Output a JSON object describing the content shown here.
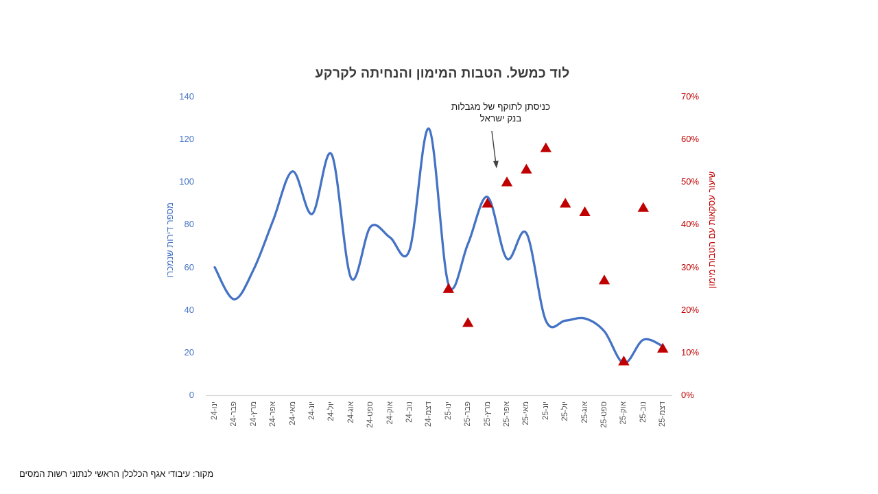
{
  "chart_data": {
    "type": "combo: smoothed line (left axis) + triangle scatter markers (right axis)",
    "title": "לוד כמשל. הטבות המימון והנחיתה לקרקע",
    "source": "מקור: עיבודי אגף הכלכלן הראשי לנתוני רשות המסים",
    "annotation": {
      "line1": "כניסתן לתוקף של מגבלות",
      "line2": "בנק ישראל",
      "points_to_category": "אפר-25"
    },
    "categories": [
      "ינו-24",
      "פבר-24",
      "מרץ-24",
      "אפר-24",
      "מאי-24",
      "יונ-24",
      "יול-24",
      "אוג-24",
      "ספט-24",
      "אוק-24",
      "נוב-24",
      "דצמ-24",
      "ינו-25",
      "פבר-25",
      "מרץ-25",
      "אפר-25",
      "מאי-25",
      "יונ-25",
      "יול-25",
      "אוג-25",
      "ספט-25",
      "אוק-25",
      "נוב-25",
      "דצמ-25"
    ],
    "series": [
      {
        "name": "מספר דירות שנמכרו",
        "type": "line",
        "axis": "left",
        "color": "#4472c4",
        "values": [
          60,
          45,
          59,
          82,
          105,
          85,
          113,
          55,
          79,
          74,
          68,
          125,
          52,
          71,
          93,
          64,
          76,
          35,
          35,
          36,
          30,
          15,
          26,
          23
        ]
      },
      {
        "name": "שיעור עסקאות עם הטבות מימון",
        "type": "scatter",
        "marker": "triangle",
        "axis": "right",
        "color": "#c00000",
        "values_percent": [
          null,
          null,
          null,
          null,
          null,
          null,
          null,
          null,
          null,
          null,
          null,
          null,
          25,
          17,
          45,
          50,
          53,
          58,
          45,
          43,
          27,
          8,
          44,
          11
        ]
      }
    ],
    "left_axis": {
      "title": "מספר דירות שנמכרו",
      "min": 0,
      "max": 140,
      "ticks": [
        140,
        120,
        100,
        80,
        60,
        40,
        20,
        0
      ],
      "color": "#4472c4"
    },
    "right_axis": {
      "title": "שיעור עסקאות עם הטבות מימון",
      "min": "0%",
      "max": "70%",
      "ticks": [
        "70%",
        "60%",
        "50%",
        "40%",
        "30%",
        "20%",
        "10%",
        "0%"
      ],
      "color": "#c00000"
    },
    "gridlines": false,
    "legend": "none",
    "axis_line_color": "#d9d9d9"
  }
}
